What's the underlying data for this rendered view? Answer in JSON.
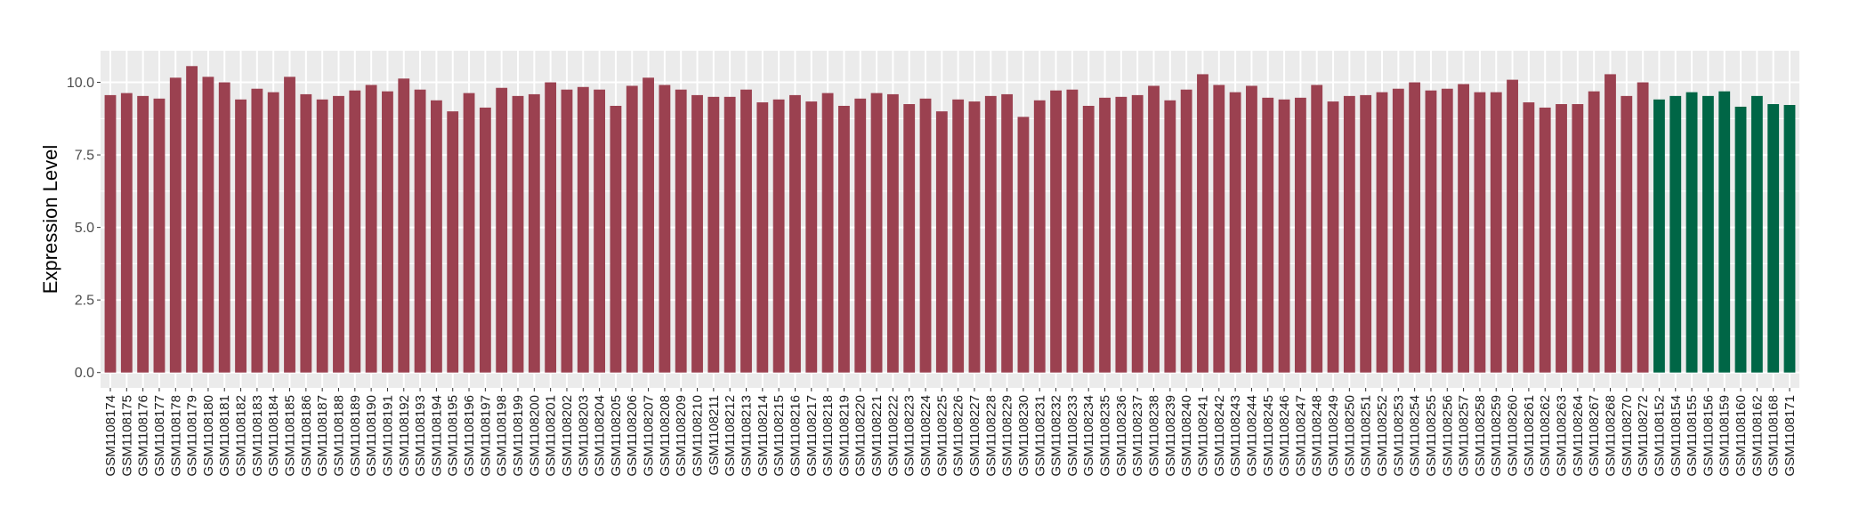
{
  "chart_data": {
    "type": "bar",
    "title": "",
    "xlabel": "",
    "ylabel": "Expression Level",
    "ylim": [
      -0.53,
      11.09
    ],
    "yticks": [
      0.0,
      2.5,
      5.0,
      7.5,
      10.0
    ],
    "ytick_labels": [
      "0.0",
      "2.5",
      "5.0",
      "7.5",
      "10.0"
    ],
    "grid": true,
    "legend": "none",
    "colors": {
      "group1": "#9b4150",
      "group2": "#006646",
      "panel": "#ebebeb",
      "grid": "#ffffff"
    },
    "categories": [
      "GSM1108174",
      "GSM1108175",
      "GSM1108176",
      "GSM1108177",
      "GSM1108178",
      "GSM1108179",
      "GSM1108180",
      "GSM1108181",
      "GSM1108182",
      "GSM1108183",
      "GSM1108184",
      "GSM1108185",
      "GSM1108186",
      "GSM1108187",
      "GSM1108188",
      "GSM1108189",
      "GSM1108190",
      "GSM1108191",
      "GSM1108192",
      "GSM1108193",
      "GSM1108194",
      "GSM1108195",
      "GSM1108196",
      "GSM1108197",
      "GSM1108198",
      "GSM1108199",
      "GSM1108200",
      "GSM1108201",
      "GSM1108202",
      "GSM1108203",
      "GSM1108204",
      "GSM1108205",
      "GSM1108206",
      "GSM1108207",
      "GSM1108208",
      "GSM1108209",
      "GSM1108210",
      "GSM1108211",
      "GSM1108212",
      "GSM1108213",
      "GSM1108214",
      "GSM1108215",
      "GSM1108216",
      "GSM1108217",
      "GSM1108218",
      "GSM1108219",
      "GSM1108220",
      "GSM1108221",
      "GSM1108222",
      "GSM1108223",
      "GSM1108224",
      "GSM1108225",
      "GSM1108226",
      "GSM1108227",
      "GSM1108228",
      "GSM1108229",
      "GSM1108230",
      "GSM1108231",
      "GSM1108232",
      "GSM1108233",
      "GSM1108234",
      "GSM1108235",
      "GSM1108236",
      "GSM1108237",
      "GSM1108238",
      "GSM1108239",
      "GSM1108240",
      "GSM1108241",
      "GSM1108242",
      "GSM1108243",
      "GSM1108244",
      "GSM1108245",
      "GSM1108246",
      "GSM1108247",
      "GSM1108248",
      "GSM1108249",
      "GSM1108250",
      "GSM1108251",
      "GSM1108252",
      "GSM1108253",
      "GSM1108254",
      "GSM1108255",
      "GSM1108256",
      "GSM1108257",
      "GSM1108258",
      "GSM1108259",
      "GSM1108260",
      "GSM1108261",
      "GSM1108262",
      "GSM1108263",
      "GSM1108264",
      "GSM1108267",
      "GSM1108268",
      "GSM1108270",
      "GSM1108272",
      "GSM1108152",
      "GSM1108154",
      "GSM1108155",
      "GSM1108156",
      "GSM1108159",
      "GSM1108160",
      "GSM1108162",
      "GSM1108168",
      "GSM1108171"
    ],
    "values": [
      9.56,
      9.63,
      9.53,
      9.44,
      10.16,
      10.56,
      10.19,
      10.0,
      9.41,
      9.78,
      9.66,
      10.19,
      9.59,
      9.41,
      9.53,
      9.72,
      9.91,
      9.69,
      10.13,
      9.75,
      9.38,
      9.0,
      9.63,
      9.13,
      9.81,
      9.53,
      9.59,
      10.0,
      9.75,
      9.84,
      9.75,
      9.19,
      9.88,
      10.16,
      9.91,
      9.75,
      9.56,
      9.5,
      9.5,
      9.75,
      9.31,
      9.41,
      9.56,
      9.34,
      9.63,
      9.19,
      9.44,
      9.63,
      9.59,
      9.25,
      9.44,
      9.0,
      9.41,
      9.34,
      9.53,
      9.59,
      8.81,
      9.38,
      9.72,
      9.75,
      9.19,
      9.47,
      9.5,
      9.56,
      9.88,
      9.38,
      9.75,
      10.28,
      9.91,
      9.66,
      9.88,
      9.47,
      9.41,
      9.47,
      9.91,
      9.34,
      9.53,
      9.56,
      9.66,
      9.78,
      10.0,
      9.72,
      9.78,
      9.94,
      9.66,
      9.66,
      10.09,
      9.31,
      9.13,
      9.25,
      9.25,
      9.69,
      10.28,
      9.53,
      10.0,
      9.41,
      9.53,
      9.66,
      9.53,
      9.69,
      9.16,
      9.53,
      9.25,
      9.22
    ],
    "groups": [
      "group1",
      "group1",
      "group1",
      "group1",
      "group1",
      "group1",
      "group1",
      "group1",
      "group1",
      "group1",
      "group1",
      "group1",
      "group1",
      "group1",
      "group1",
      "group1",
      "group1",
      "group1",
      "group1",
      "group1",
      "group1",
      "group1",
      "group1",
      "group1",
      "group1",
      "group1",
      "group1",
      "group1",
      "group1",
      "group1",
      "group1",
      "group1",
      "group1",
      "group1",
      "group1",
      "group1",
      "group1",
      "group1",
      "group1",
      "group1",
      "group1",
      "group1",
      "group1",
      "group1",
      "group1",
      "group1",
      "group1",
      "group1",
      "group1",
      "group1",
      "group1",
      "group1",
      "group1",
      "group1",
      "group1",
      "group1",
      "group1",
      "group1",
      "group1",
      "group1",
      "group1",
      "group1",
      "group1",
      "group1",
      "group1",
      "group1",
      "group1",
      "group1",
      "group1",
      "group1",
      "group1",
      "group1",
      "group1",
      "group1",
      "group1",
      "group1",
      "group1",
      "group1",
      "group1",
      "group1",
      "group1",
      "group1",
      "group1",
      "group1",
      "group1",
      "group1",
      "group1",
      "group1",
      "group1",
      "group1",
      "group1",
      "group1",
      "group1",
      "group1",
      "group1",
      "group2",
      "group2",
      "group2",
      "group2",
      "group2",
      "group2",
      "group2",
      "group2",
      "group2"
    ]
  }
}
